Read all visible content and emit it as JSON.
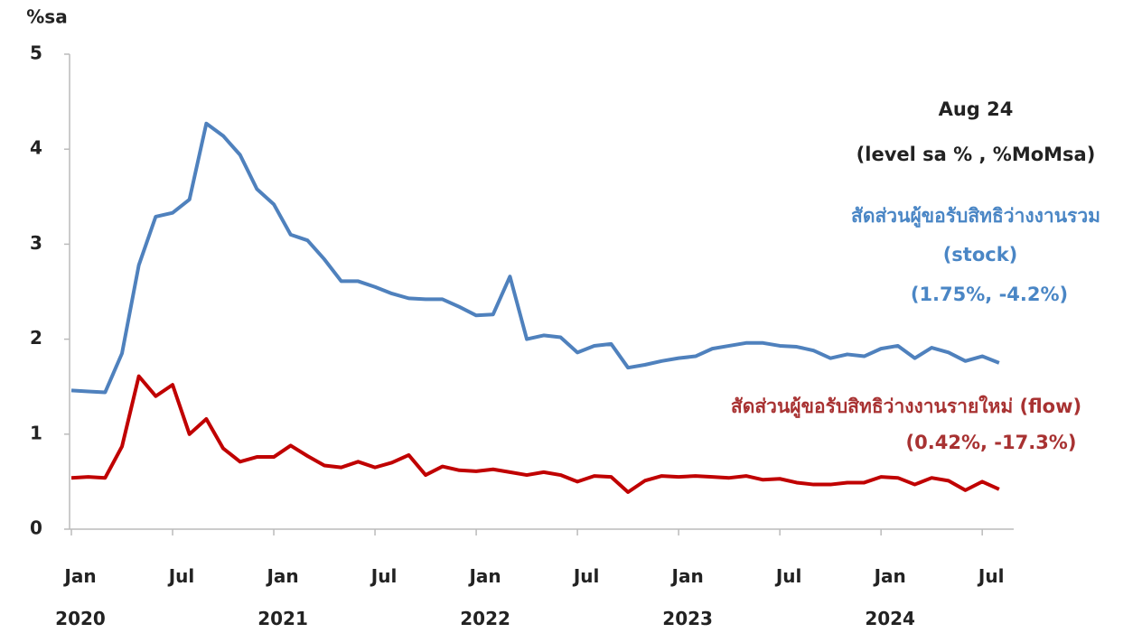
{
  "chart_data": {
    "type": "line",
    "y_label": "%sa",
    "annotations": [
      "Aug 24",
      "(level sa % , %MoMsa)",
      "สัดส่วนผู้ขอรับสิทธิว่างงานรวม",
      "(stock)",
      "(1.75%, -4.2%)",
      "สัดส่วนผู้ขอรับสิทธิว่างงานรายใหม่ (flow)",
      "(0.42%, -17.3%)"
    ],
    "categories": [
      "Jan 2020",
      null,
      null,
      null,
      null,
      null,
      "Jul",
      null,
      null,
      null,
      null,
      null,
      "Jan 2021",
      null,
      null,
      null,
      null,
      null,
      "Jul",
      null,
      null,
      null,
      null,
      null,
      "Jan 2022",
      null,
      null,
      null,
      null,
      null,
      "Jul",
      null,
      null,
      null,
      null,
      null,
      "Jan 2023",
      null,
      null,
      null,
      null,
      null,
      "Jul",
      null,
      null,
      null,
      null,
      null,
      "Jan 2024",
      null,
      null,
      null,
      null,
      null,
      "Jul",
      null
    ],
    "series": [
      {
        "name": "สัดส่วนผู้ขอรับสิทธิว่างงานรวม (stock)",
        "color": "#4f81bd",
        "values": [
          1.46,
          1.45,
          1.44,
          1.85,
          2.78,
          3.29,
          3.33,
          3.47,
          4.27,
          4.14,
          3.94,
          3.58,
          3.42,
          3.1,
          3.04,
          2.84,
          2.61,
          2.61,
          2.55,
          2.48,
          2.43,
          2.42,
          2.42,
          2.34,
          2.25,
          2.26,
          2.66,
          2.0,
          2.04,
          2.02,
          1.86,
          1.93,
          1.95,
          1.7,
          1.73,
          1.77,
          1.8,
          1.82,
          1.9,
          1.93,
          1.96,
          1.96,
          1.93,
          1.92,
          1.88,
          1.8,
          1.84,
          1.82,
          1.9,
          1.93,
          1.8,
          1.91,
          1.86,
          1.77,
          1.82,
          1.75
        ]
      },
      {
        "name": "สัดส่วนผู้ขอรับสิทธิว่างงานรายใหม่ (flow)",
        "color": "#c00000",
        "values": [
          0.54,
          0.55,
          0.54,
          0.87,
          1.61,
          1.4,
          1.52,
          1.0,
          1.16,
          0.85,
          0.71,
          0.76,
          0.76,
          0.88,
          0.77,
          0.67,
          0.65,
          0.71,
          0.65,
          0.7,
          0.78,
          0.57,
          0.66,
          0.62,
          0.61,
          0.63,
          0.6,
          0.57,
          0.6,
          0.57,
          0.5,
          0.56,
          0.55,
          0.39,
          0.51,
          0.56,
          0.55,
          0.56,
          0.55,
          0.54,
          0.56,
          0.52,
          0.53,
          0.49,
          0.47,
          0.47,
          0.49,
          0.49,
          0.55,
          0.54,
          0.47,
          0.54,
          0.51,
          0.41,
          0.5,
          0.42
        ]
      }
    ],
    "ylim": [
      0,
      5
    ],
    "yticks": [
      0,
      1,
      2,
      3,
      4,
      5
    ],
    "grid": false
  }
}
